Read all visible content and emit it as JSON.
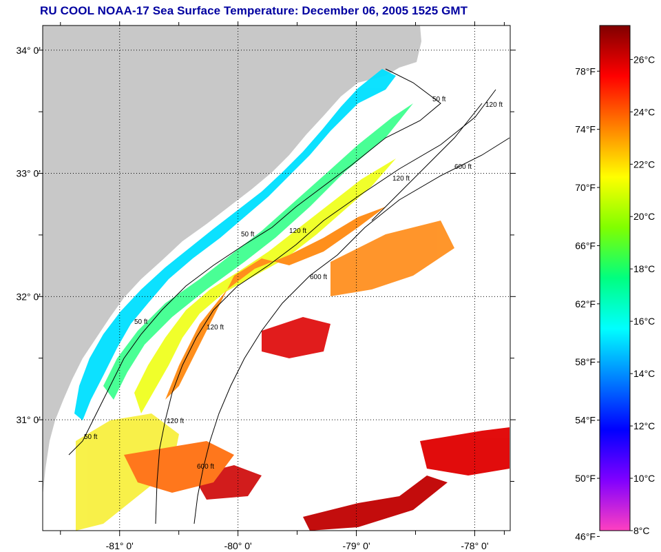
{
  "title": {
    "source": "RU COOL",
    "satellite": "NOAA-17",
    "product": "Sea Surface Temperature:",
    "date_time": "December 06, 2005 1525 GMT"
  },
  "title_text": "RU COOL  NOAA-17  Sea Surface Temperature:  December 06, 2005 1525 GMT",
  "map": {
    "lon_range": [
      -81.65,
      -77.7
    ],
    "lat_range": [
      30.1,
      34.2
    ],
    "lon_ticks": [
      {
        "value": -81.0,
        "label": "-81° 0'"
      },
      {
        "value": -80.0,
        "label": "-80° 0'"
      },
      {
        "value": -79.0,
        "label": "-79° 0'"
      },
      {
        "value": -78.0,
        "label": "-78° 0'"
      }
    ],
    "lat_ticks": [
      {
        "value": 34.0,
        "label": "34° 0'"
      },
      {
        "value": 33.0,
        "label": "33° 0'"
      },
      {
        "value": 32.0,
        "label": "32° 0'"
      },
      {
        "value": 31.0,
        "label": "31° 0'"
      }
    ],
    "minor_lon_ticks": [
      -81.5,
      -80.5,
      -79.5,
      -78.5,
      -77.75
    ],
    "minor_lat_ticks": [
      33.5,
      32.5,
      31.5,
      30.5
    ],
    "isobath_labels": [
      "50 ft",
      "50 ft",
      "50 ft",
      "50 ft",
      "120 ft",
      "120 ft",
      "120 ft",
      "120 ft",
      "600 ft",
      "600 ft",
      "600 ft",
      "120 ft"
    ],
    "colors": {
      "land": "#c8c8c8",
      "ocean_nodata": "#ffffff",
      "grid": "#000000"
    }
  },
  "colorbar": {
    "min_c": 8,
    "max_c": 27.3,
    "celsius_labels": [
      "26°C",
      "24°C",
      "22°C",
      "20°C",
      "18°C",
      "16°C",
      "14°C",
      "12°C",
      "10°C",
      "8°C"
    ],
    "fahrenheit_labels": [
      "78°F",
      "74°F",
      "70°F",
      "66°F",
      "62°F",
      "58°F",
      "54°F",
      "50°F",
      "46°F"
    ],
    "celsius_values": [
      26,
      24,
      22,
      20,
      18,
      16,
      14,
      12,
      10,
      8
    ],
    "fahrenheit_values": [
      78,
      74,
      70,
      66,
      62,
      58,
      54,
      50,
      46
    ],
    "stops": [
      "#ff40c0",
      "#8000ff",
      "#0000ff",
      "#0080ff",
      "#00ffff",
      "#00ff80",
      "#80ff00",
      "#ffff00",
      "#ff8000",
      "#ff0000",
      "#800000"
    ]
  }
}
